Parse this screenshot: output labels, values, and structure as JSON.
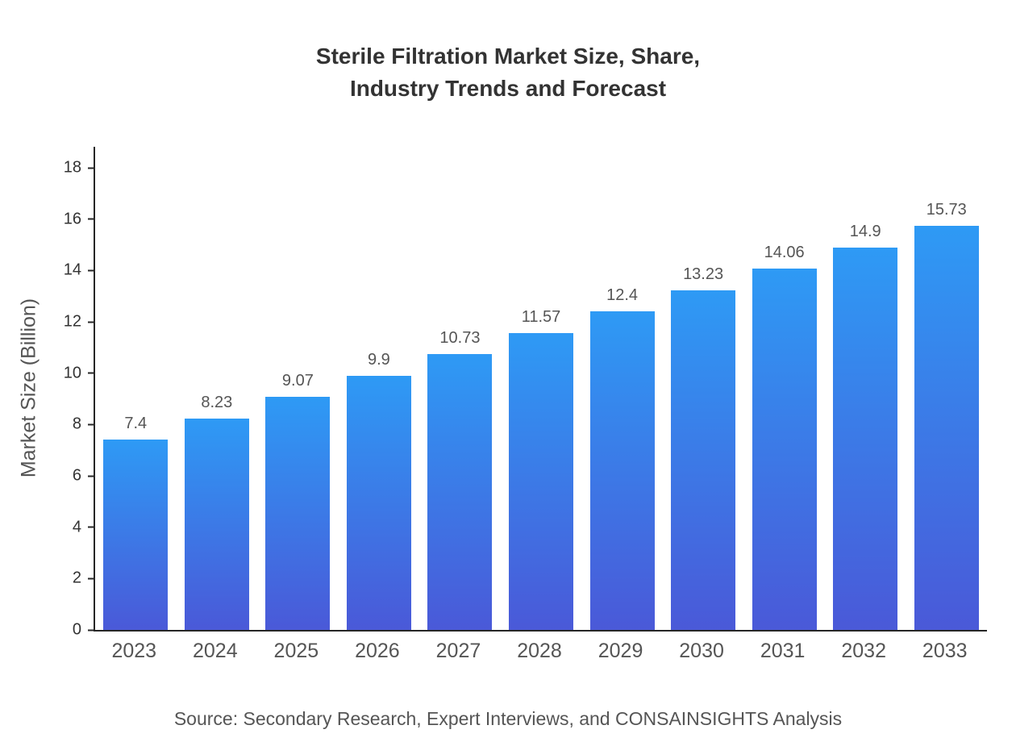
{
  "title": {
    "line1": "Sterile Filtration Market Size, Share,",
    "line2": "Industry Trends and Forecast"
  },
  "source": "Source: Secondary Research, Expert Interviews, and CONSAINSIGHTS Analysis",
  "chart_data": {
    "type": "bar",
    "title": "Sterile Filtration Market Size, Share, Industry Trends and Forecast",
    "categories": [
      "2023",
      "2024",
      "2025",
      "2026",
      "2027",
      "2028",
      "2029",
      "2030",
      "2031",
      "2032",
      "2033"
    ],
    "values": [
      7.4,
      8.23,
      9.07,
      9.9,
      10.73,
      11.57,
      12.4,
      13.23,
      14.06,
      14.9,
      15.73
    ],
    "xlabel": "",
    "ylabel": "Market Size (Billion)",
    "ylim": [
      0,
      18
    ],
    "yticks": [
      0,
      2,
      4,
      6,
      8,
      10,
      12,
      14,
      16,
      18
    ],
    "grid": false,
    "legend": "none",
    "bar_gradient_top": "#2E9AF5",
    "bar_gradient_bottom": "#4A59D8",
    "axis_color": "#262626",
    "value_label_color": "#555555",
    "tick_label_color": "#333333"
  }
}
